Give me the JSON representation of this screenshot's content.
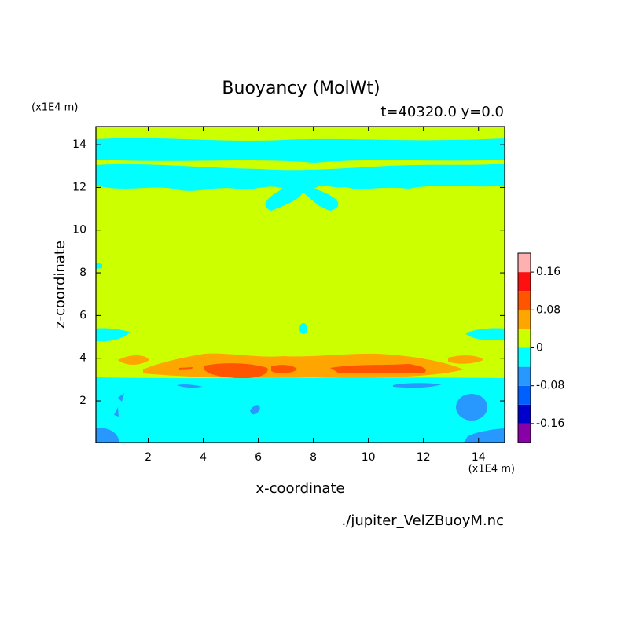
{
  "chart_data": {
    "type": "contour",
    "title": "Buoyancy (MolWt)",
    "subtitle": "t=40320.0 y=0.0",
    "x_label": "x-coordinate",
    "y_label": "z-coordinate",
    "x_unit": "(x1E4 m)",
    "y_unit": "(x1E4 m)",
    "source": "./jupiter_VelZBuoyM.nc",
    "xlim": [
      0.1,
      14.95
    ],
    "xticks": [
      2,
      4,
      6,
      8,
      10,
      12,
      14
    ],
    "ylim": [
      0.05,
      14.85
    ],
    "yticks": [
      2,
      4,
      6,
      8,
      10,
      12,
      14
    ],
    "levels": [
      -0.2,
      -0.16,
      -0.12,
      -0.08,
      -0.04,
      0,
      0.04,
      0.08,
      0.12,
      0.16,
      0.2
    ],
    "colors": [
      "#8a00a8",
      "#0000cc",
      "#0060ff",
      "#2898ff",
      "#00ffff",
      "#ccff00",
      "#ffa500",
      "#ff5500",
      "#ff1010",
      "#ffb0b0"
    ],
    "colorbar_ticks": [
      -0.16,
      -0.08,
      0,
      0.08,
      0.16
    ]
  }
}
